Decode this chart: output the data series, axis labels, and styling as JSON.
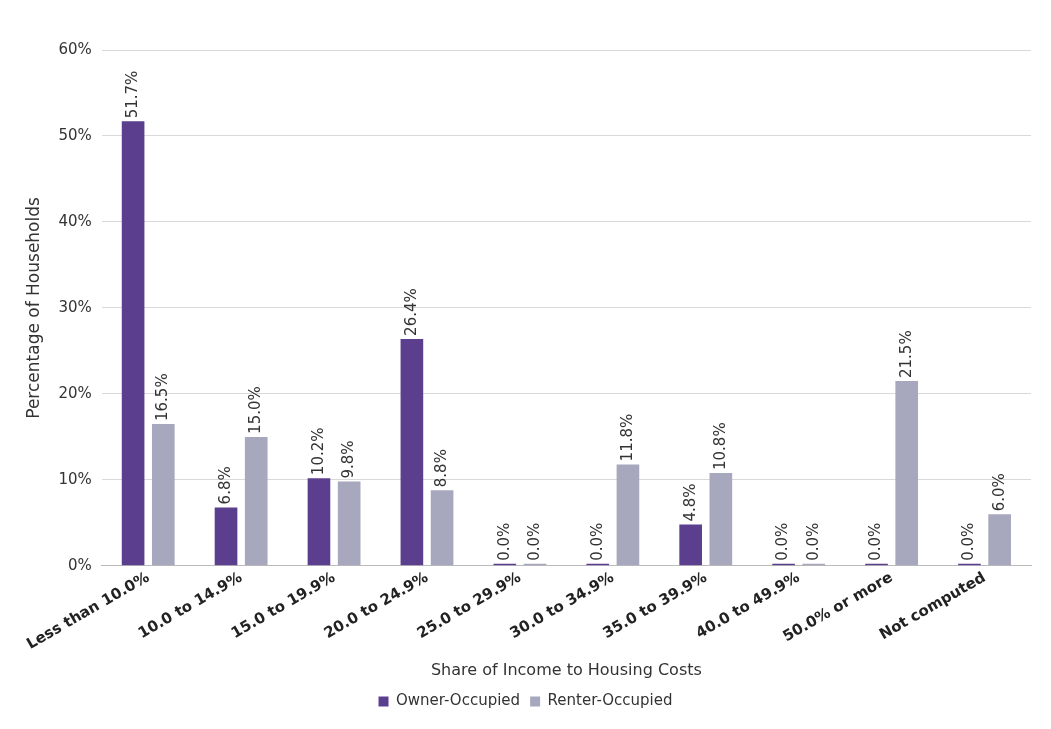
{
  "chart_data": {
    "type": "bar",
    "xlabel": "Share of Income to Housing Costs",
    "ylabel": "Percentage of Households",
    "categories": [
      "Less than 10.0%",
      "10.0 to 14.9%",
      "15.0 to 19.9%",
      "20.0 to 24.9%",
      "25.0 to 29.9%",
      "30.0 to 34.9%",
      "35.0 to 39.9%",
      "40.0 to 49.9%",
      "50.0% or more",
      "Not computed"
    ],
    "series": [
      {
        "name": "Owner-Occupied",
        "color": "#5b3f8e",
        "values": [
          51.7,
          6.8,
          10.2,
          26.4,
          0.0,
          0.0,
          4.8,
          0.0,
          0.0,
          0.0
        ],
        "value_labels": [
          "51.7%",
          "6.8%",
          "10.2%",
          "26.4%",
          "0.0%",
          "0.0%",
          "4.8%",
          "0.0%",
          "0.0%",
          "0.0%"
        ]
      },
      {
        "name": "Renter-Occupied",
        "color": "#a7a7bd",
        "values": [
          16.5,
          15.0,
          9.8,
          8.8,
          0.0,
          11.8,
          10.8,
          0.0,
          21.5,
          6.0
        ],
        "value_labels": [
          "16.5%",
          "15.0%",
          "9.8%",
          "8.8%",
          "0.0%",
          "11.8%",
          "10.8%",
          "0.0%",
          "21.5%",
          "6.0%"
        ]
      }
    ],
    "ylim": [
      0,
      60
    ],
    "yticks": [
      {
        "value": 0,
        "label": "0%"
      },
      {
        "value": 10,
        "label": "10%"
      },
      {
        "value": 20,
        "label": "20%"
      },
      {
        "value": 30,
        "label": "30%"
      },
      {
        "value": 40,
        "label": "40%"
      },
      {
        "value": 50,
        "label": "50%"
      },
      {
        "value": 60,
        "label": "60%"
      }
    ],
    "grid": "y",
    "legend": "bottom"
  }
}
